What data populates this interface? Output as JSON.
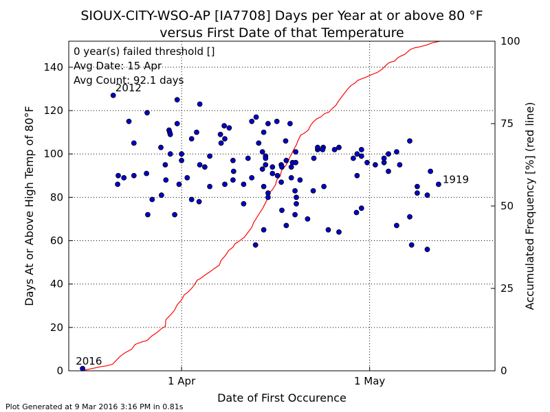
{
  "chart_data": {
    "type": "scatter",
    "title": "SIOUX-CITY-WSO-AP [IA7708] Days per Year at or above 80 °F",
    "subtitle": "versus First Date of that Temperature",
    "xlabel": "Date of First Occurence",
    "ylabel": "Days At or Above High Temp of 80°F",
    "y2label": "Accumulated Frequency [%] (red line)",
    "xlim": [
      42,
      110
    ],
    "ylim": [
      0,
      152
    ],
    "y2lim": [
      0,
      100
    ],
    "x_ticks": [
      {
        "value": 60,
        "label": "1 Apr"
      },
      {
        "value": 90,
        "label": "1 May"
      }
    ],
    "y_ticks": [
      0,
      20,
      40,
      60,
      80,
      100,
      120,
      140
    ],
    "y2_ticks": [
      0,
      25,
      50,
      75,
      100
    ],
    "grid": true,
    "info": [
      "0 year(s) failed threshold []",
      "Avg Date: 15 Apr",
      "Avg Count: 92.1 days"
    ],
    "annotations": [
      {
        "text": "2012",
        "x": 49,
        "y": 127
      },
      {
        "text": "2016",
        "x": 44,
        "y": 1
      },
      {
        "text": "1919",
        "x": 101,
        "y": 86
      }
    ],
    "points": [
      [
        44.2,
        1
      ],
      [
        49.1,
        127
      ],
      [
        49.8,
        86
      ],
      [
        49.9,
        90
      ],
      [
        50.8,
        89
      ],
      [
        51.6,
        115
      ],
      [
        52.4,
        105
      ],
      [
        52.4,
        90
      ],
      [
        54.5,
        119
      ],
      [
        54.4,
        91
      ],
      [
        54.6,
        72
      ],
      [
        55.3,
        79
      ],
      [
        56.7,
        103
      ],
      [
        56.8,
        81
      ],
      [
        57.4,
        95
      ],
      [
        57.5,
        88
      ],
      [
        58.0,
        111
      ],
      [
        58.1,
        110
      ],
      [
        58.2,
        109
      ],
      [
        58.2,
        100
      ],
      [
        58.9,
        72
      ],
      [
        59.3,
        125
      ],
      [
        59.3,
        114
      ],
      [
        59.6,
        86
      ],
      [
        60.0,
        97
      ],
      [
        60.0,
        100
      ],
      [
        60.9,
        89
      ],
      [
        61.6,
        107
      ],
      [
        61.6,
        79
      ],
      [
        62.4,
        110
      ],
      [
        62.9,
        123
      ],
      [
        62.9,
        95
      ],
      [
        62.8,
        78
      ],
      [
        63.7,
        94
      ],
      [
        64.5,
        99
      ],
      [
        64.5,
        85
      ],
      [
        66.2,
        109
      ],
      [
        66.3,
        105
      ],
      [
        66.9,
        107
      ],
      [
        66.9,
        86
      ],
      [
        66.8,
        113
      ],
      [
        67.6,
        112
      ],
      [
        68.2,
        97
      ],
      [
        68.3,
        92
      ],
      [
        68.2,
        88
      ],
      [
        69.9,
        86
      ],
      [
        69.9,
        77
      ],
      [
        70.6,
        98
      ],
      [
        71.2,
        115
      ],
      [
        71.2,
        89
      ],
      [
        71.9,
        117
      ],
      [
        71.8,
        58
      ],
      [
        72.3,
        105
      ],
      [
        72.9,
        101
      ],
      [
        73.1,
        110
      ],
      [
        72.9,
        93
      ],
      [
        73.1,
        85
      ],
      [
        73.1,
        65
      ],
      [
        73.8,
        114
      ],
      [
        73.4,
        95
      ],
      [
        73.4,
        99
      ],
      [
        73.4,
        98
      ],
      [
        73.8,
        82
      ],
      [
        73.8,
        80
      ],
      [
        74.5,
        94
      ],
      [
        74.5,
        91
      ],
      [
        75.2,
        115
      ],
      [
        75.3,
        90
      ],
      [
        75.9,
        87
      ],
      [
        75.9,
        95
      ],
      [
        76.0,
        94
      ],
      [
        76.0,
        74
      ],
      [
        76.6,
        106
      ],
      [
        76.7,
        97
      ],
      [
        76.7,
        67
      ],
      [
        77.3,
        114
      ],
      [
        77.5,
        94
      ],
      [
        77.5,
        89
      ],
      [
        77.7,
        96
      ],
      [
        78.2,
        101
      ],
      [
        78.2,
        96
      ],
      [
        78.1,
        83
      ],
      [
        78.3,
        80
      ],
      [
        78.3,
        77
      ],
      [
        78.1,
        72
      ],
      [
        78.9,
        88
      ],
      [
        80.1,
        70
      ],
      [
        81.1,
        98
      ],
      [
        81.0,
        83
      ],
      [
        81.7,
        102
      ],
      [
        81.7,
        103
      ],
      [
        82.6,
        103
      ],
      [
        82.5,
        102
      ],
      [
        82.7,
        85
      ],
      [
        83.4,
        65
      ],
      [
        84.4,
        102
      ],
      [
        85.1,
        103
      ],
      [
        85.1,
        64
      ],
      [
        87.4,
        98
      ],
      [
        88.0,
        100
      ],
      [
        88.0,
        90
      ],
      [
        87.9,
        73
      ],
      [
        88.7,
        102
      ],
      [
        88.7,
        99
      ],
      [
        88.7,
        75
      ],
      [
        89.6,
        96
      ],
      [
        90.9,
        95
      ],
      [
        92.3,
        98
      ],
      [
        92.3,
        96
      ],
      [
        93.0,
        100
      ],
      [
        93.0,
        92
      ],
      [
        94.3,
        67
      ],
      [
        94.3,
        101
      ],
      [
        94.8,
        95
      ],
      [
        96.4,
        106
      ],
      [
        96.4,
        71
      ],
      [
        96.7,
        58
      ],
      [
        97.6,
        85
      ],
      [
        97.6,
        82
      ],
      [
        99.2,
        81
      ],
      [
        99.2,
        56
      ],
      [
        99.7,
        92
      ],
      [
        101.0,
        86
      ]
    ],
    "cumulative_line": [
      [
        44.2,
        0
      ],
      [
        45.0,
        0.4
      ],
      [
        46.0,
        0.8
      ],
      [
        47.0,
        1.2
      ],
      [
        48.0,
        1.5
      ],
      [
        49.0,
        2.0
      ],
      [
        49.6,
        3.2
      ],
      [
        50.2,
        4.4
      ],
      [
        51.0,
        5.5
      ],
      [
        52.0,
        6.5
      ],
      [
        52.6,
        8.0
      ],
      [
        53.7,
        8.8
      ],
      [
        54.5,
        9.2
      ],
      [
        55.2,
        10.5
      ],
      [
        56.0,
        11.5
      ],
      [
        56.8,
        12.8
      ],
      [
        57.4,
        13.5
      ],
      [
        57.5,
        15.5
      ],
      [
        58.0,
        16.5
      ],
      [
        58.5,
        17.5
      ],
      [
        58.9,
        18.5
      ],
      [
        59.3,
        20.0
      ],
      [
        60.0,
        21.5
      ],
      [
        60.4,
        23.0
      ],
      [
        61.1,
        24.0
      ],
      [
        61.6,
        25.0
      ],
      [
        62.0,
        26.0
      ],
      [
        62.5,
        27.5
      ],
      [
        63.0,
        28.0
      ],
      [
        63.7,
        29.0
      ],
      [
        64.5,
        30.0
      ],
      [
        65.2,
        31.0
      ],
      [
        66.0,
        32.0
      ],
      [
        66.3,
        33.5
      ],
      [
        67.0,
        35.0
      ],
      [
        67.5,
        36.5
      ],
      [
        68.2,
        37.5
      ],
      [
        68.5,
        38.5
      ],
      [
        69.3,
        39.5
      ],
      [
        70.0,
        40.5
      ],
      [
        70.6,
        42.0
      ],
      [
        71.2,
        43.5
      ],
      [
        71.5,
        45.0
      ],
      [
        72.0,
        46.5
      ],
      [
        72.5,
        48.0
      ],
      [
        73.0,
        49.5
      ],
      [
        73.4,
        51.0
      ],
      [
        73.8,
        52.5
      ],
      [
        74.0,
        54.0
      ],
      [
        74.5,
        55.0
      ],
      [
        75.0,
        56.5
      ],
      [
        75.2,
        58.0
      ],
      [
        75.7,
        59.0
      ],
      [
        76.0,
        61.0
      ],
      [
        76.7,
        62.5
      ],
      [
        77.0,
        63.5
      ],
      [
        77.3,
        65.0
      ],
      [
        77.6,
        66.0
      ],
      [
        78.0,
        67.5
      ],
      [
        78.3,
        68.5
      ],
      [
        78.6,
        70.0
      ],
      [
        79.0,
        71.5
      ],
      [
        79.5,
        72.0
      ],
      [
        80.2,
        73.0
      ],
      [
        80.6,
        74.5
      ],
      [
        81.0,
        75.5
      ],
      [
        81.6,
        76.5
      ],
      [
        82.2,
        77.0
      ],
      [
        82.8,
        78.0
      ],
      [
        83.5,
        78.5
      ],
      [
        84.0,
        79.5
      ],
      [
        84.6,
        80.5
      ],
      [
        85.1,
        82.0
      ],
      [
        85.9,
        84.0
      ],
      [
        86.5,
        85.5
      ],
      [
        87.0,
        86.5
      ],
      [
        87.8,
        87.5
      ],
      [
        88.0,
        88.0
      ],
      [
        88.6,
        88.5
      ],
      [
        89.3,
        89.0
      ],
      [
        89.9,
        89.5
      ],
      [
        90.5,
        90.0
      ],
      [
        91.2,
        90.5
      ],
      [
        92.0,
        91.5
      ],
      [
        92.5,
        92.5
      ],
      [
        93.1,
        93.5
      ],
      [
        94.0,
        94.0
      ],
      [
        94.5,
        95.0
      ],
      [
        95.0,
        95.5
      ],
      [
        95.6,
        96.0
      ],
      [
        96.2,
        97.0
      ],
      [
        96.5,
        97.5
      ],
      [
        97.2,
        98.0
      ],
      [
        98.0,
        98.3
      ],
      [
        99.0,
        98.8
      ],
      [
        100.0,
        99.5
      ],
      [
        101.2,
        100.0
      ]
    ],
    "colors": {
      "point_fill": "#0000cc",
      "point_stroke": "#000000",
      "line": "#ff0000",
      "axis": "#000000",
      "grid": "#000000"
    }
  },
  "footer": "Plot Generated at 9 Mar 2016 3:16 PM in 0.81s"
}
